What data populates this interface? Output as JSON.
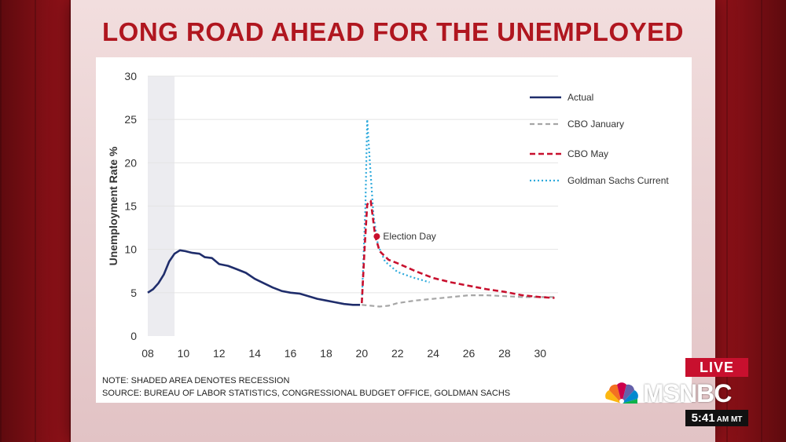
{
  "headline": "LONG ROAD AHEAD FOR THE UNEMPLOYED",
  "notes": {
    "line1": "NOTE: SHADED AREA DENOTES RECESSION",
    "line2": "SOURCE: BUREAU OF LABOR STATISTICS, CONGRESSIONAL BUDGET OFFICE, GOLDMAN SACHS"
  },
  "broadcast": {
    "live_label": "LIVE",
    "network": "MSNBC",
    "time": "5:41",
    "time_zone": "AM MT"
  },
  "colors": {
    "headline": "#b0161f",
    "actual": "#1f2d6b",
    "cbo_january": "#a6a6a6",
    "cbo_may": "#c8102e",
    "goldman": "#2eaadc",
    "recession_shade": "#ececf0"
  },
  "chart_data": {
    "type": "line",
    "title": "",
    "xlabel": "",
    "ylabel": "Unemployment Rate %",
    "xlim": [
      2008,
      2031
    ],
    "ylim": [
      0,
      30
    ],
    "x_ticks": [
      2008,
      2010,
      2012,
      2014,
      2016,
      2018,
      2020,
      2022,
      2024,
      2026,
      2028,
      2030
    ],
    "x_tick_labels": [
      "08",
      "10",
      "12",
      "14",
      "16",
      "18",
      "20",
      "22",
      "24",
      "26",
      "28",
      "30"
    ],
    "y_ticks": [
      0,
      5,
      10,
      15,
      20,
      25,
      30
    ],
    "y_tick_labels": [
      "0",
      "5",
      "10",
      "15",
      "20",
      "25",
      "30"
    ],
    "grid": true,
    "legend_position": "right",
    "recession_shading": [
      2008.0,
      2009.5
    ],
    "series": [
      {
        "name": "Actual",
        "style": "solid",
        "points": [
          [
            2008.0,
            5.0
          ],
          [
            2008.3,
            5.4
          ],
          [
            2008.6,
            6.1
          ],
          [
            2008.9,
            7.1
          ],
          [
            2009.2,
            8.6
          ],
          [
            2009.5,
            9.5
          ],
          [
            2009.8,
            9.9
          ],
          [
            2010.1,
            9.8
          ],
          [
            2010.5,
            9.6
          ],
          [
            2010.9,
            9.5
          ],
          [
            2011.2,
            9.1
          ],
          [
            2011.6,
            9.0
          ],
          [
            2012.0,
            8.3
          ],
          [
            2012.5,
            8.1
          ],
          [
            2013.0,
            7.7
          ],
          [
            2013.5,
            7.3
          ],
          [
            2014.0,
            6.6
          ],
          [
            2014.5,
            6.1
          ],
          [
            2015.0,
            5.6
          ],
          [
            2015.5,
            5.2
          ],
          [
            2016.0,
            5.0
          ],
          [
            2016.5,
            4.9
          ],
          [
            2017.0,
            4.6
          ],
          [
            2017.5,
            4.3
          ],
          [
            2018.0,
            4.1
          ],
          [
            2018.5,
            3.9
          ],
          [
            2019.0,
            3.7
          ],
          [
            2019.5,
            3.6
          ],
          [
            2019.9,
            3.6
          ]
        ]
      },
      {
        "name": "CBO January",
        "style": "dashed",
        "points": [
          [
            2020.0,
            3.6
          ],
          [
            2020.5,
            3.5
          ],
          [
            2021.0,
            3.4
          ],
          [
            2021.5,
            3.5
          ],
          [
            2022.0,
            3.8
          ],
          [
            2023.0,
            4.1
          ],
          [
            2024.0,
            4.3
          ],
          [
            2025.0,
            4.5
          ],
          [
            2026.0,
            4.7
          ],
          [
            2027.0,
            4.7
          ],
          [
            2028.0,
            4.6
          ],
          [
            2029.0,
            4.5
          ],
          [
            2030.0,
            4.5
          ],
          [
            2030.8,
            4.5
          ]
        ]
      },
      {
        "name": "CBO May",
        "style": "dashed",
        "points": [
          [
            2020.0,
            3.8
          ],
          [
            2020.15,
            10.0
          ],
          [
            2020.3,
            15.2
          ],
          [
            2020.5,
            15.6
          ],
          [
            2020.75,
            11.5
          ],
          [
            2021.0,
            9.8
          ],
          [
            2021.5,
            8.8
          ],
          [
            2022.0,
            8.4
          ],
          [
            2023.0,
            7.5
          ],
          [
            2024.0,
            6.7
          ],
          [
            2025.0,
            6.2
          ],
          [
            2026.0,
            5.8
          ],
          [
            2027.0,
            5.4
          ],
          [
            2028.0,
            5.1
          ],
          [
            2029.0,
            4.7
          ],
          [
            2030.0,
            4.5
          ],
          [
            2030.8,
            4.4
          ]
        ]
      },
      {
        "name": "Goldman Sachs Current",
        "style": "dotted",
        "points": [
          [
            2020.0,
            3.8
          ],
          [
            2020.2,
            15.0
          ],
          [
            2020.3,
            25.0
          ],
          [
            2020.45,
            20.0
          ],
          [
            2020.65,
            14.0
          ],
          [
            2020.9,
            10.5
          ],
          [
            2021.3,
            8.6
          ],
          [
            2022.0,
            7.4
          ],
          [
            2022.8,
            6.8
          ],
          [
            2023.8,
            6.2
          ]
        ]
      }
    ],
    "annotations": [
      {
        "text": "Election Day",
        "x": 2020.84,
        "y": 11.5
      }
    ]
  }
}
